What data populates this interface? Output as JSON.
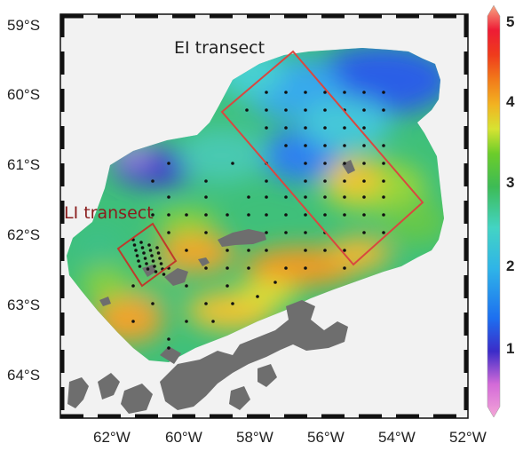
{
  "map": {
    "lat_labels": [
      "59°S",
      "60°S",
      "61°S",
      "62°S",
      "63°S",
      "64°S"
    ],
    "lon_labels": [
      "62°W",
      "60°W",
      "58°W",
      "56°W",
      "54°W",
      "52°W"
    ],
    "lon_range": [
      -63.5,
      -52.0
    ],
    "lat_range": [
      -64.6,
      -59.0
    ],
    "colorbar": {
      "ticks": [
        "5",
        "4",
        "3",
        "2",
        "1"
      ],
      "range": [
        0,
        5
      ],
      "colors": [
        "#f4a6d7",
        "#d36ad8",
        "#3b2cc8",
        "#1d6ff0",
        "#2fb4e8",
        "#43d4c4",
        "#3dbb55",
        "#6ccd2a",
        "#d7e332",
        "#f2b221",
        "#f27a1a",
        "#ef3b1c",
        "#ee1c35",
        "#f7a783"
      ]
    },
    "transects": [
      {
        "label": "EI transect",
        "color": "#d9473f"
      },
      {
        "label": "LI transect",
        "color": "#8a1d1d"
      }
    ]
  }
}
